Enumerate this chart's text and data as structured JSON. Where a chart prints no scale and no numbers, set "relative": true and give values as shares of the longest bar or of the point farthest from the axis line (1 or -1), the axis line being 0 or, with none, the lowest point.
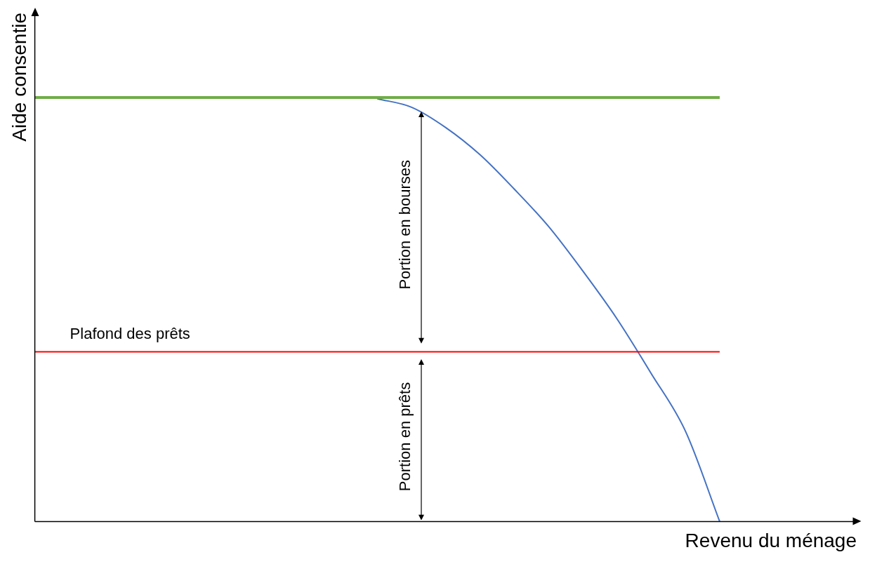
{
  "chart_data": {
    "type": "line",
    "relative": true,
    "xlabel": "Revenu du ménage",
    "ylabel": "Aide consentie",
    "categories": [
      null,
      null,
      null,
      null,
      null,
      null,
      null,
      null,
      null,
      null,
      null,
      null,
      null,
      null,
      null,
      null,
      null,
      null,
      null,
      null,
      null,
      null,
      null,
      null,
      null
    ],
    "series": [
      {
        "color": "#70ad47",
        "values": [
          1,
          1,
          1,
          1,
          1,
          1,
          1,
          1,
          1,
          1,
          1,
          1,
          1,
          1,
          1,
          1,
          1,
          1,
          1,
          1,
          1,
          null,
          null,
          null,
          null
        ]
      },
      {
        "color": "#4472c4",
        "values": [
          null,
          null,
          null,
          null,
          null,
          null,
          null,
          null,
          null,
          null,
          0.997,
          0.977,
          0.929,
          0.865,
          0.784,
          0.696,
          0.591,
          0.478,
          0.349,
          0.213,
          0,
          null,
          null,
          null,
          null
        ]
      }
    ],
    "ref_lines": [
      {
        "axis": "y",
        "value": 0.4,
        "label": "Plafond des prêts",
        "color": "#ff0000"
      }
    ],
    "annotations": [
      "Portion en bourses",
      "Portion en prêts"
    ],
    "legend": false,
    "grid": false,
    "marker": "none",
    "line_style": "solid"
  }
}
